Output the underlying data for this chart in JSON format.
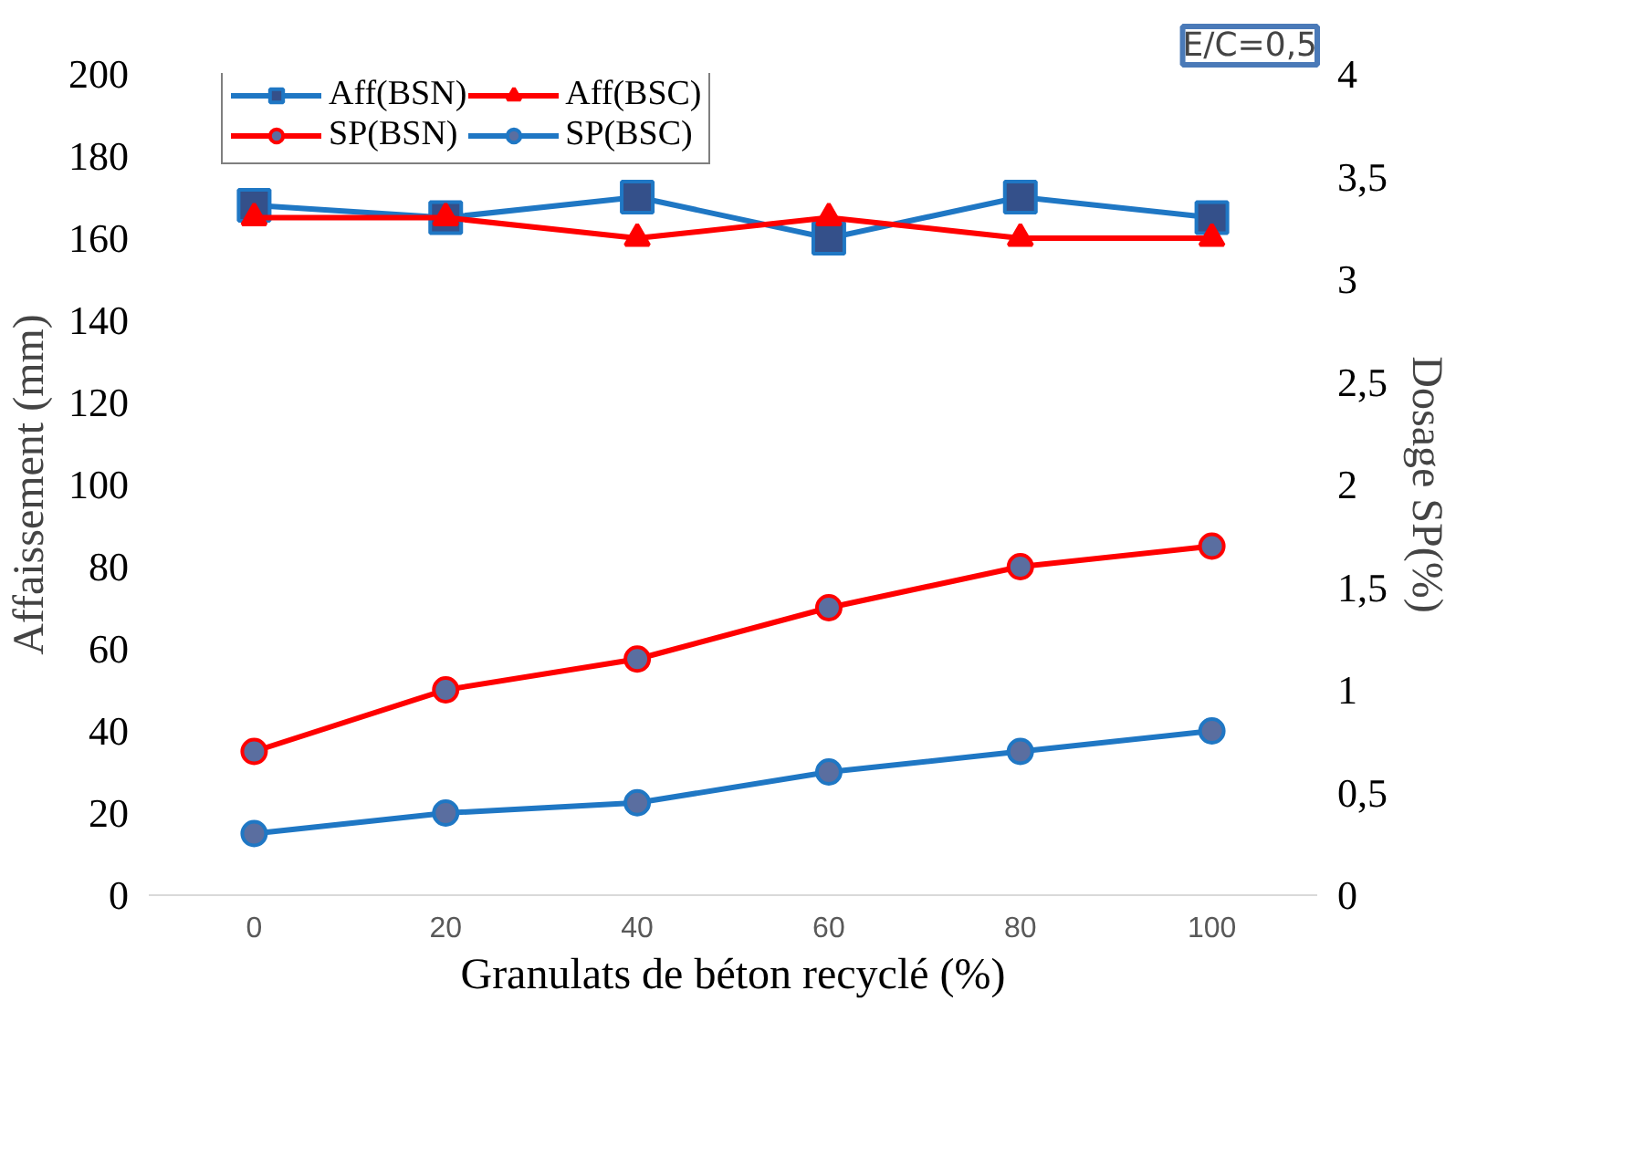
{
  "chart_data": {
    "type": "line",
    "categories": [
      "0",
      "20",
      "40",
      "60",
      "80",
      "100"
    ],
    "xlabel": "Granulats de béton recyclé (%)",
    "ylabel": "Affaissement (mm)",
    "y2label": "Dosage SP(%)",
    "ylim": [
      0,
      200
    ],
    "yticks": [
      0,
      20,
      40,
      60,
      80,
      100,
      120,
      140,
      160,
      180,
      200
    ],
    "y2lim": [
      0,
      4
    ],
    "y2ticks": [
      0,
      {
        "value": 0.5,
        "label": "0,5"
      },
      1,
      {
        "value": 1.5,
        "label": "1,5"
      },
      2,
      {
        "value": 2.5,
        "label": "2,5"
      },
      3,
      {
        "value": 3.5,
        "label": "3,5"
      },
      4
    ],
    "series": [
      {
        "name": "Aff(BSN)",
        "color": "#1f77c4",
        "marker": "square",
        "values": [
          168,
          165,
          170,
          160,
          170,
          165
        ]
      },
      {
        "name": "Aff(BSC)",
        "color": "#ff0000",
        "marker": "triangle",
        "values": [
          165,
          165,
          160,
          165,
          160,
          160
        ]
      },
      {
        "name": "SP(BSN)",
        "color": "#ff0000",
        "marker": "circle",
        "axis": "y2",
        "values": [
          0.7,
          1.0,
          1.15,
          1.4,
          1.6,
          1.7
        ]
      },
      {
        "name": "SP(BSC)",
        "color": "#1f77c4",
        "marker": "circle",
        "axis": "y2",
        "values": [
          0.3,
          0.4,
          0.45,
          0.6,
          0.7,
          0.8
        ]
      }
    ],
    "legend": "top",
    "grid": false,
    "annotations": [
      "E/C=0,5"
    ]
  }
}
